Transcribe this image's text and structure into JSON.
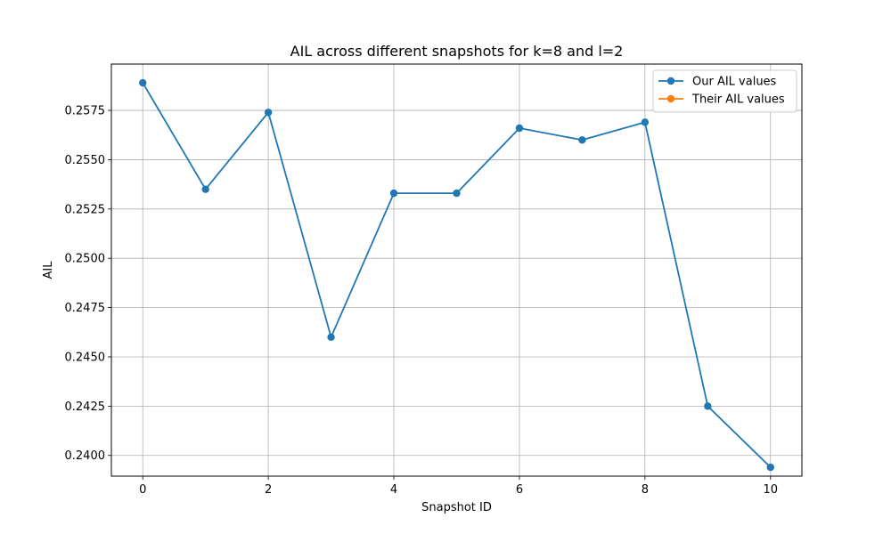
{
  "chart_data": {
    "type": "line",
    "title": "AIL across different snapshots for k=8 and l=2",
    "xlabel": "Snapshot ID",
    "ylabel": "AIL",
    "xlim": [
      -0.5,
      10.5
    ],
    "ylim": [
      0.23895,
      0.25985
    ],
    "xticks": [
      0,
      2,
      4,
      6,
      8,
      10
    ],
    "yticks": [
      0.24,
      0.2425,
      0.245,
      0.2475,
      0.25,
      0.2525,
      0.255,
      0.2575
    ],
    "ytick_labels": [
      "0.2400",
      "0.2425",
      "0.2450",
      "0.2475",
      "0.2500",
      "0.2525",
      "0.2550",
      "0.2575"
    ],
    "grid": true,
    "legend_position": "top-right",
    "series": [
      {
        "name": "Our AIL values",
        "color": "#1f77b4",
        "marker": "circle",
        "x": [
          0,
          1,
          2,
          3,
          4,
          5,
          6,
          7,
          8,
          9,
          10
        ],
        "values": [
          0.2589,
          0.2535,
          0.2574,
          0.246,
          0.2533,
          0.2533,
          0.2566,
          0.256,
          0.2569,
          0.2425,
          0.2394
        ]
      },
      {
        "name": "Their AIL values",
        "color": "#ff7f0e",
        "marker": "circle",
        "x": [],
        "values": []
      }
    ]
  }
}
